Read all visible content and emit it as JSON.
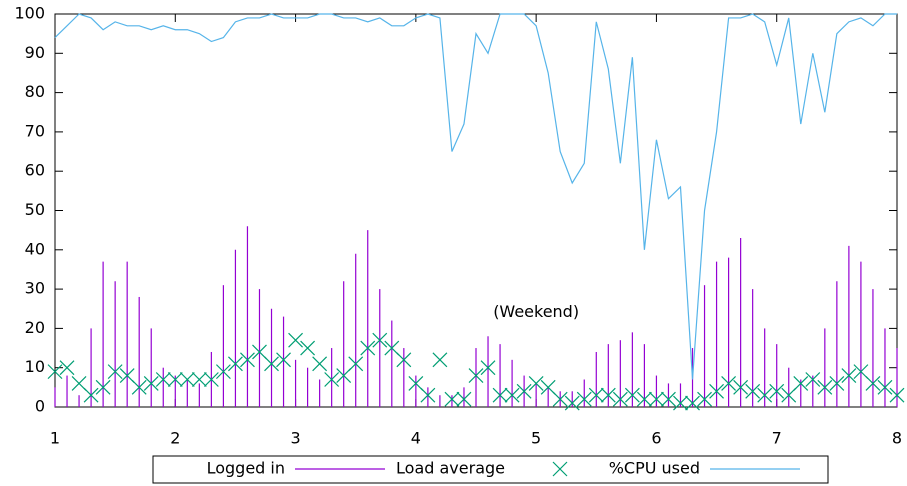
{
  "chart_data": {
    "type": "combo",
    "annotation": "(Weekend)",
    "x": [
      1.0,
      1.1,
      1.2,
      1.3,
      1.4,
      1.5,
      1.6,
      1.7,
      1.8,
      1.9,
      2.0,
      2.1,
      2.2,
      2.3,
      2.4,
      2.5,
      2.6,
      2.7,
      2.8,
      2.9,
      3.0,
      3.1,
      3.2,
      3.3,
      3.4,
      3.5,
      3.6,
      3.7,
      3.8,
      3.9,
      4.0,
      4.1,
      4.2,
      4.3,
      4.4,
      4.5,
      4.6,
      4.7,
      4.8,
      4.9,
      5.0,
      5.1,
      5.2,
      5.3,
      5.4,
      5.5,
      5.6,
      5.7,
      5.8,
      5.9,
      6.0,
      6.1,
      6.2,
      6.3,
      6.4,
      6.5,
      6.6,
      6.7,
      6.8,
      6.9,
      7.0,
      7.1,
      7.2,
      7.3,
      7.4,
      7.5,
      7.6,
      7.7,
      7.8,
      7.9,
      8.0
    ],
    "series": [
      {
        "name": "Logged in",
        "kind": "impulses",
        "color": "#9400d3",
        "values": [
          5,
          8,
          3,
          20,
          37,
          32,
          37,
          28,
          20,
          10,
          8,
          7,
          6,
          14,
          31,
          40,
          46,
          30,
          25,
          23,
          12,
          10,
          7,
          15,
          32,
          39,
          45,
          30,
          22,
          15,
          8,
          5,
          3,
          3,
          5,
          15,
          18,
          16,
          12,
          8,
          6,
          5,
          4,
          4,
          7,
          14,
          16,
          17,
          19,
          16,
          8,
          6,
          6,
          15,
          31,
          37,
          38,
          43,
          30,
          20,
          16,
          10,
          7,
          8,
          20,
          32,
          41,
          37,
          30,
          20,
          15
        ]
      },
      {
        "name": "Load average",
        "kind": "points",
        "color": "#009e73",
        "values": [
          9,
          10,
          6,
          3,
          5,
          9,
          8,
          5,
          6,
          7,
          7,
          7,
          7,
          7,
          9,
          11,
          12,
          14,
          11,
          12,
          17,
          15,
          11,
          7,
          8,
          11,
          15,
          17,
          15,
          12,
          6,
          3,
          12,
          2,
          2,
          8,
          10,
          3,
          3,
          4,
          6,
          5,
          2,
          1,
          2,
          3,
          3,
          2,
          3,
          2,
          2,
          2,
          1,
          1,
          2,
          4,
          6,
          5,
          4,
          3,
          4,
          3,
          6,
          7,
          5,
          6,
          8,
          9,
          6,
          5,
          3
        ]
      },
      {
        "name": "%CPU used",
        "kind": "line",
        "color": "#56b4e9",
        "values": [
          94,
          97,
          100,
          99,
          96,
          98,
          97,
          97,
          96,
          97,
          96,
          96,
          95,
          93,
          94,
          98,
          99,
          99,
          100,
          99,
          99,
          99,
          100,
          100,
          99,
          99,
          98,
          99,
          97,
          97,
          99,
          100,
          99,
          65,
          72,
          95,
          90,
          100,
          100,
          100,
          97,
          85,
          65,
          57,
          62,
          98,
          86,
          62,
          89,
          40,
          68,
          53,
          56,
          7,
          50,
          70,
          99,
          99,
          100,
          98,
          87,
          99,
          72,
          90,
          75,
          95,
          98,
          99,
          97,
          100,
          100
        ]
      }
    ],
    "xlim": [
      1,
      8
    ],
    "xticks": [
      1,
      2,
      3,
      4,
      5,
      6,
      7,
      8
    ],
    "ylim": [
      0,
      100
    ],
    "yticks": [
      0,
      10,
      20,
      30,
      40,
      50,
      60,
      70,
      80,
      90,
      100
    ],
    "legend": "below"
  }
}
